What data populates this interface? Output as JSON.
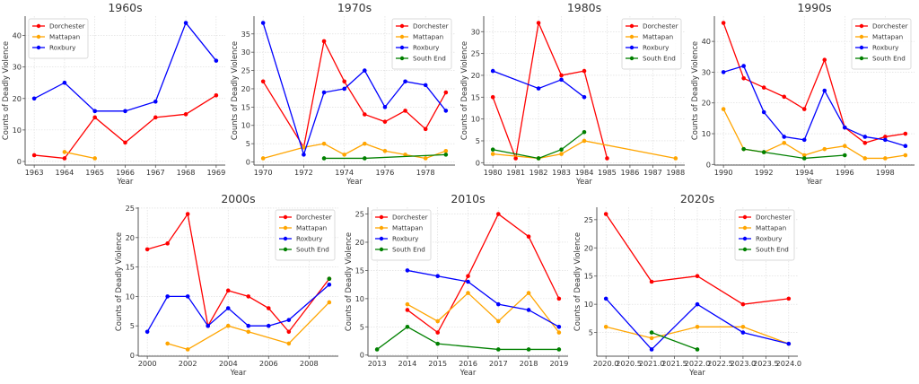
{
  "chart_data": [
    {
      "type": "line",
      "title": "1960s",
      "xlabel": "Year",
      "ylabel": "Counts of Deadly Violence",
      "xlim": [
        1962.7,
        1969.3
      ],
      "ylim": [
        -1.15,
        46.15
      ],
      "xticks": [
        1963,
        1964,
        1965,
        1966,
        1967,
        1968,
        1969
      ],
      "xtick_labels": [
        "1963",
        "1964",
        "1965",
        "1966",
        "1967",
        "1968",
        "1969"
      ],
      "yticks": [
        0,
        10,
        20,
        30,
        40
      ],
      "ytick_labels": [
        "0",
        "10",
        "20",
        "30",
        "40"
      ],
      "grid": true,
      "legend_position": "top-left",
      "series": [
        {
          "name": "Dorchester",
          "color": "#ff0000",
          "x": [
            1963,
            1964,
            1965,
            1966,
            1967,
            1968,
            1969
          ],
          "values": [
            2,
            1,
            14,
            6,
            14,
            15,
            21
          ]
        },
        {
          "name": "Mattapan",
          "color": "#ffa500",
          "x": [
            1964,
            1965
          ],
          "values": [
            3,
            1
          ]
        },
        {
          "name": "Roxbury",
          "color": "#0000ff",
          "x": [
            1963,
            1964,
            1965,
            1966,
            1967,
            1968,
            1969
          ],
          "values": [
            20,
            25,
            16,
            16,
            19,
            44,
            32
          ]
        }
      ]
    },
    {
      "type": "line",
      "title": "1970s",
      "xlabel": "Year",
      "ylabel": "Counts of Deadly Violence",
      "xlim": [
        1969.55,
        1979.45
      ],
      "ylim": [
        -0.85,
        39.85
      ],
      "xticks": [
        1970,
        1972,
        1974,
        1976,
        1978
      ],
      "xtick_labels": [
        "1970",
        "1972",
        "1974",
        "1976",
        "1978"
      ],
      "yticks": [
        0,
        5,
        10,
        15,
        20,
        25,
        30,
        35
      ],
      "ytick_labels": [
        "0",
        "5",
        "10",
        "15",
        "20",
        "25",
        "30",
        "35"
      ],
      "grid": true,
      "legend_position": "top-right",
      "series": [
        {
          "name": "Dorchester",
          "color": "#ff0000",
          "x": [
            1970,
            1972,
            1973,
            1974,
            1975,
            1976,
            1977,
            1978,
            1979
          ],
          "values": [
            22,
            4,
            33,
            22,
            13,
            11,
            14,
            9,
            19
          ]
        },
        {
          "name": "Mattapan",
          "color": "#ffa500",
          "x": [
            1970,
            1972,
            1973,
            1974,
            1975,
            1976,
            1977,
            1978,
            1979
          ],
          "values": [
            1,
            4,
            5,
            2,
            5,
            3,
            2,
            1,
            3
          ]
        },
        {
          "name": "Roxbury",
          "color": "#0000ff",
          "x": [
            1970,
            1972,
            1973,
            1974,
            1975,
            1976,
            1977,
            1978,
            1979
          ],
          "values": [
            38,
            2,
            19,
            20,
            25,
            15,
            22,
            21,
            14
          ]
        },
        {
          "name": "South End",
          "color": "#008000",
          "x": [
            1973,
            1975,
            1979
          ],
          "values": [
            1,
            1,
            2
          ]
        }
      ]
    },
    {
      "type": "line",
      "title": "1980s",
      "xlabel": "Year",
      "ylabel": "Counts of Deadly Violence",
      "xlim": [
        1979.6,
        1988.4
      ],
      "ylim": [
        -0.55,
        33.55
      ],
      "xticks": [
        1980,
        1981,
        1982,
        1983,
        1984,
        1985,
        1986,
        1987,
        1988
      ],
      "xtick_labels": [
        "1980",
        "1981",
        "1982",
        "1983",
        "1984",
        "1985",
        "1986",
        "1987",
        "1988"
      ],
      "yticks": [
        0,
        5,
        10,
        15,
        20,
        25,
        30
      ],
      "ytick_labels": [
        "0",
        "5",
        "10",
        "15",
        "20",
        "25",
        "30"
      ],
      "grid": true,
      "legend_position": "top-right",
      "series": [
        {
          "name": "Dorchester",
          "color": "#ff0000",
          "x": [
            1980,
            1981,
            1982,
            1983,
            1984,
            1985
          ],
          "values": [
            15,
            1,
            32,
            20,
            21,
            1
          ]
        },
        {
          "name": "Mattapan",
          "color": "#ffa500",
          "x": [
            1980,
            1982,
            1983,
            1984,
            1988
          ],
          "values": [
            2,
            1,
            2,
            5,
            1
          ]
        },
        {
          "name": "Roxbury",
          "color": "#0000ff",
          "x": [
            1980,
            1982,
            1983,
            1984
          ],
          "values": [
            21,
            17,
            19,
            15
          ]
        },
        {
          "name": "South End",
          "color": "#008000",
          "x": [
            1980,
            1982,
            1983,
            1984
          ],
          "values": [
            3,
            1,
            3,
            7
          ]
        }
      ]
    },
    {
      "type": "line",
      "title": "1990s",
      "xlabel": "Year",
      "ylabel": "Counts of Deadly Violence",
      "xlim": [
        1989.55,
        1999.45
      ],
      "ylim": [
        -0.2,
        48.2
      ],
      "xticks": [
        1990,
        1992,
        1994,
        1996,
        1998
      ],
      "xtick_labels": [
        "1990",
        "1992",
        "1994",
        "1996",
        "1998"
      ],
      "yticks": [
        0,
        10,
        20,
        30,
        40
      ],
      "ytick_labels": [
        "0",
        "10",
        "20",
        "30",
        "40"
      ],
      "grid": true,
      "legend_position": "top-right",
      "series": [
        {
          "name": "Dorchester",
          "color": "#ff0000",
          "x": [
            1990,
            1991,
            1992,
            1993,
            1994,
            1995,
            1996,
            1997,
            1998,
            1999
          ],
          "values": [
            46,
            28,
            25,
            22,
            18,
            34,
            12,
            7,
            9,
            10
          ]
        },
        {
          "name": "Mattapan",
          "color": "#ffa500",
          "x": [
            1990,
            1991,
            1992,
            1993,
            1994,
            1995,
            1996,
            1997,
            1998,
            1999
          ],
          "values": [
            18,
            5,
            4,
            7,
            3,
            5,
            6,
            2,
            2,
            3
          ]
        },
        {
          "name": "Roxbury",
          "color": "#0000ff",
          "x": [
            1990,
            1991,
            1992,
            1993,
            1994,
            1995,
            1996,
            1997,
            1998,
            1999
          ],
          "values": [
            30,
            32,
            17,
            9,
            8,
            24,
            12,
            9,
            8,
            6
          ]
        },
        {
          "name": "South End",
          "color": "#008000",
          "x": [
            1991,
            1992,
            1994,
            1996
          ],
          "values": [
            5,
            4,
            2,
            3
          ]
        }
      ]
    },
    {
      "type": "line",
      "title": "2000s",
      "xlabel": "Year",
      "ylabel": "Counts of Deadly Violence",
      "xlim": [
        1999.55,
        2009.45
      ],
      "ylim": [
        -0.15,
        25.15
      ],
      "xticks": [
        2000,
        2002,
        2004,
        2006,
        2008
      ],
      "xtick_labels": [
        "2000",
        "2002",
        "2004",
        "2006",
        "2008"
      ],
      "yticks": [
        0,
        5,
        10,
        15,
        20,
        25
      ],
      "ytick_labels": [
        "0",
        "5",
        "10",
        "15",
        "20",
        "25"
      ],
      "grid": true,
      "legend_position": "top-right",
      "series": [
        {
          "name": "Dorchester",
          "color": "#ff0000",
          "x": [
            2000,
            2001,
            2002,
            2003,
            2004,
            2005,
            2006,
            2007,
            2009
          ],
          "values": [
            18,
            19,
            24,
            5,
            11,
            10,
            8,
            4,
            13
          ]
        },
        {
          "name": "Mattapan",
          "color": "#ffa500",
          "x": [
            2001,
            2002,
            2004,
            2005,
            2007,
            2009
          ],
          "values": [
            2,
            1,
            5,
            4,
            2,
            9
          ]
        },
        {
          "name": "Roxbury",
          "color": "#0000ff",
          "x": [
            2000,
            2001,
            2002,
            2003,
            2004,
            2005,
            2006,
            2007,
            2009
          ],
          "values": [
            4,
            10,
            10,
            5,
            8,
            5,
            5,
            6,
            12
          ]
        },
        {
          "name": "South End",
          "color": "#008000",
          "x": [
            2009
          ],
          "values": [
            13
          ]
        }
      ]
    },
    {
      "type": "line",
      "title": "2010s",
      "xlabel": "Year",
      "ylabel": "Counts of Deadly Violence",
      "xlim": [
        2012.7,
        2019.3
      ],
      "ylim": [
        -0.2,
        26.2
      ],
      "xticks": [
        2013,
        2014,
        2015,
        2016,
        2017,
        2018,
        2019
      ],
      "xtick_labels": [
        "2013",
        "2014",
        "2015",
        "2016",
        "2017",
        "2018",
        "2019"
      ],
      "yticks": [
        0,
        5,
        10,
        15,
        20,
        25
      ],
      "ytick_labels": [
        "0",
        "5",
        "10",
        "15",
        "20",
        "25"
      ],
      "grid": true,
      "legend_position": "top-left",
      "series": [
        {
          "name": "Dorchester",
          "color": "#ff0000",
          "x": [
            2014,
            2015,
            2016,
            2017,
            2018,
            2019
          ],
          "values": [
            8,
            4,
            14,
            25,
            21,
            10
          ]
        },
        {
          "name": "Mattapan",
          "color": "#ffa500",
          "x": [
            2014,
            2015,
            2016,
            2017,
            2018,
            2019
          ],
          "values": [
            9,
            6,
            11,
            6,
            11,
            4
          ]
        },
        {
          "name": "Roxbury",
          "color": "#0000ff",
          "x": [
            2014,
            2015,
            2016,
            2017,
            2018,
            2019
          ],
          "values": [
            15,
            14,
            13,
            9,
            8,
            5
          ]
        },
        {
          "name": "South End",
          "color": "#008000",
          "x": [
            2013,
            2014,
            2015,
            2017,
            2018,
            2019
          ],
          "values": [
            1,
            5,
            2,
            1,
            1,
            1
          ]
        }
      ]
    },
    {
      "type": "line",
      "title": "2020s",
      "xlabel": "Year",
      "ylabel": "Counts of Deadly Violence",
      "xlim": [
        2019.8,
        2024.2
      ],
      "ylim": [
        0.8,
        27.2
      ],
      "xticks": [
        2020.0,
        2020.5,
        2021.0,
        2021.5,
        2022.0,
        2022.5,
        2023.0,
        2023.5,
        2024.0
      ],
      "xtick_labels": [
        "2020.0",
        "2020.5",
        "2021.0",
        "2021.5",
        "2022.0",
        "2022.5",
        "2023.0",
        "2023.5",
        "2024.0"
      ],
      "yticks": [
        5,
        10,
        15,
        20,
        25
      ],
      "ytick_labels": [
        "5",
        "10",
        "15",
        "20",
        "25"
      ],
      "grid": true,
      "legend_position": "top-right",
      "series": [
        {
          "name": "Dorchester",
          "color": "#ff0000",
          "x": [
            2020,
            2021,
            2022,
            2023,
            2024
          ],
          "values": [
            26,
            14,
            15,
            10,
            11
          ]
        },
        {
          "name": "Mattapan",
          "color": "#ffa500",
          "x": [
            2020,
            2021,
            2022,
            2023,
            2024
          ],
          "values": [
            6,
            4,
            6,
            6,
            3
          ]
        },
        {
          "name": "Roxbury",
          "color": "#0000ff",
          "x": [
            2020,
            2021,
            2022,
            2023,
            2024
          ],
          "values": [
            11,
            2,
            10,
            5,
            3
          ]
        },
        {
          "name": "South End",
          "color": "#008000",
          "x": [
            2021,
            2022
          ],
          "values": [
            5,
            2
          ]
        }
      ]
    }
  ]
}
